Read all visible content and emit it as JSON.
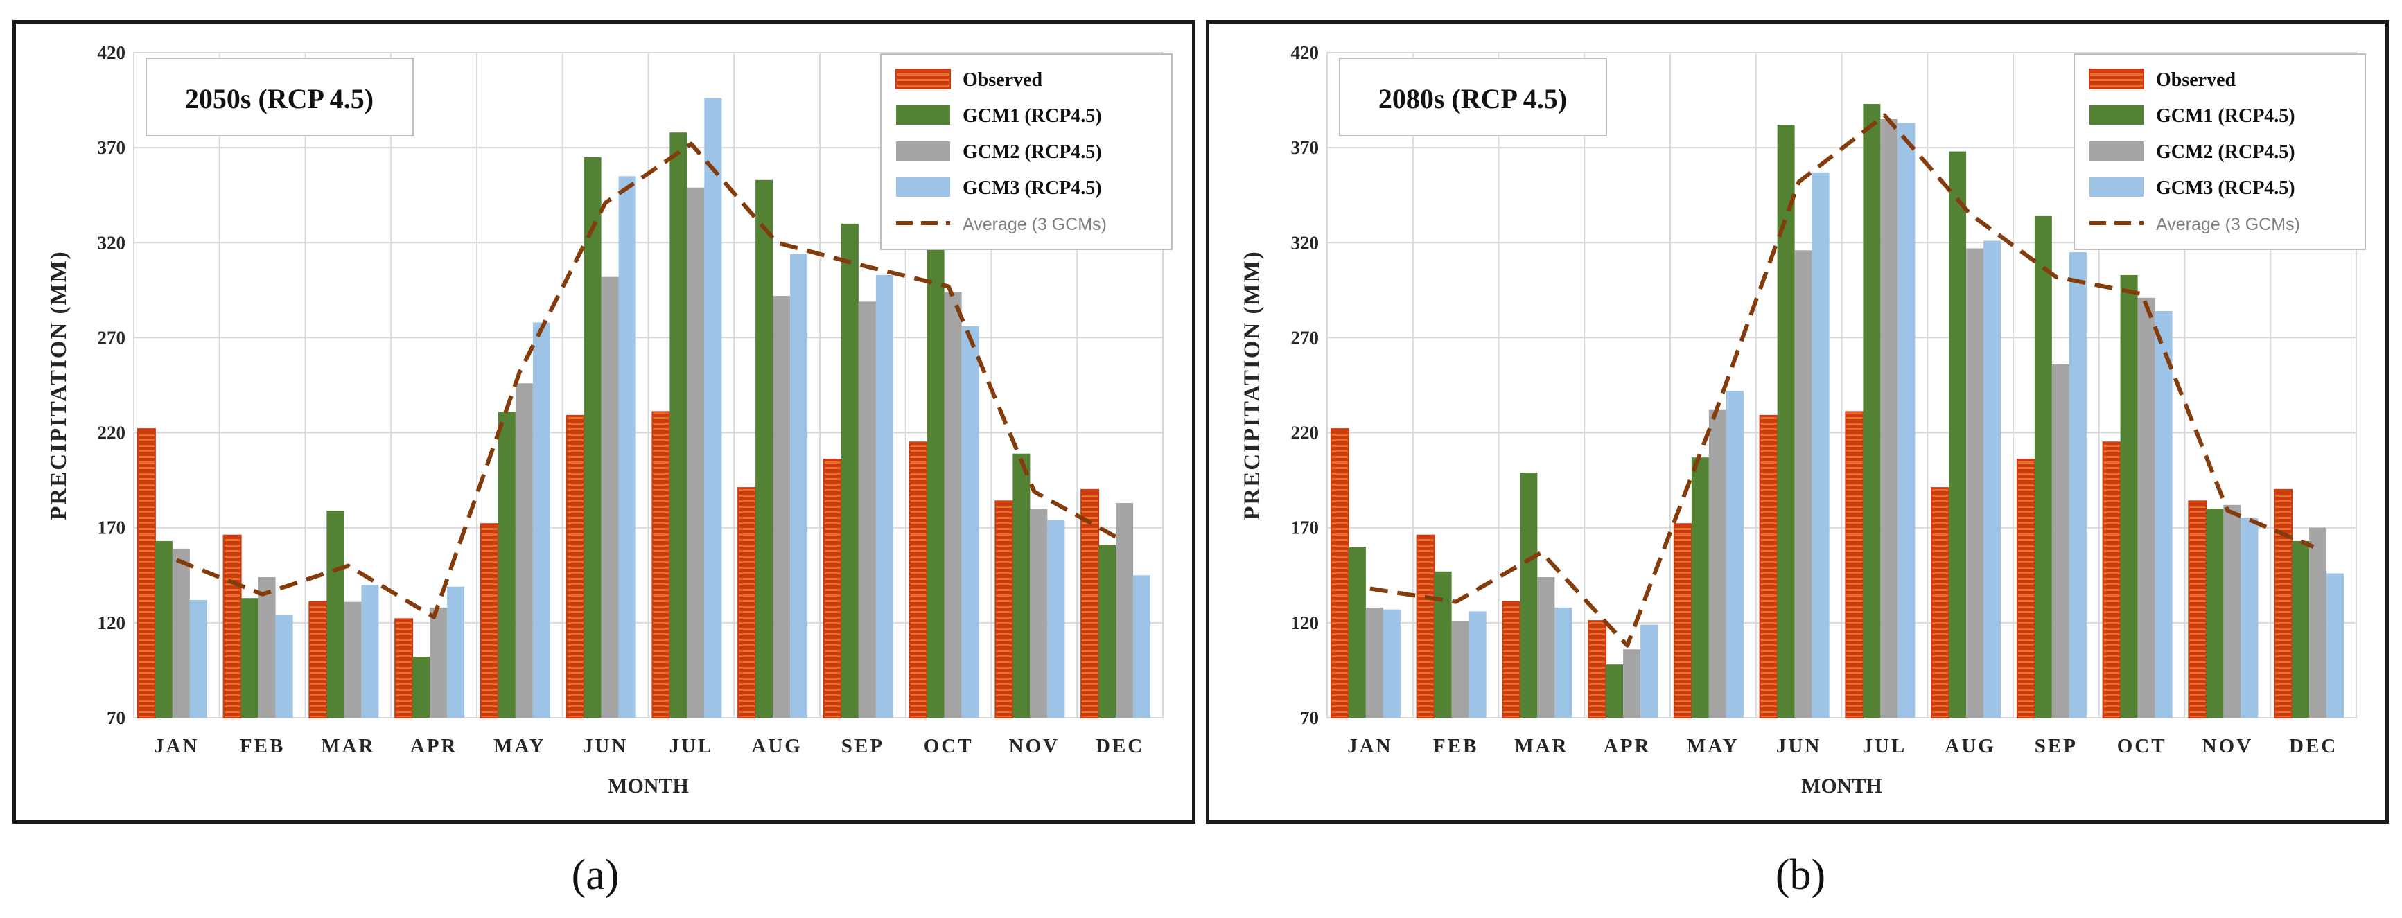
{
  "colors": {
    "observed": "#cf3a12",
    "observed_stripe": "#f0a33a",
    "gcm1": "#548235",
    "gcm2": "#a5a5a5",
    "gcm3": "#9dc3e6",
    "average": "#843c0c",
    "grid": "#d9d9d9"
  },
  "chart_data": [
    {
      "type": "bar",
      "title": "2050s (RCP 4.5)",
      "xlabel": "MONTH",
      "ylabel": "PRECIPITATION (MM)",
      "ylim": [
        70,
        420
      ],
      "yticks": [
        "70",
        "120",
        "170",
        "220",
        "270",
        "320",
        "370",
        "420"
      ],
      "categories": [
        "JAN",
        "FEB",
        "MAR",
        "APR",
        "MAY",
        "JUN",
        "JUL",
        "AUG",
        "SEP",
        "OCT",
        "NOV",
        "DEC"
      ],
      "legend_position": "top-right",
      "series": [
        {
          "name": "Observed",
          "kind": "bar",
          "values": [
            222,
            166,
            131,
            122,
            172,
            229,
            231,
            191,
            206,
            215,
            184,
            190
          ]
        },
        {
          "name": "GCM1 (RCP4.5)",
          "kind": "bar",
          "values": [
            163,
            133,
            179,
            102,
            231,
            365,
            378,
            353,
            330,
            319,
            209,
            161
          ]
        },
        {
          "name": "GCM2 (RCP4.5)",
          "kind": "bar",
          "values": [
            159,
            144,
            131,
            128,
            246,
            302,
            349,
            292,
            289,
            294,
            180,
            183
          ]
        },
        {
          "name": "GCM3 (RCP4.5)",
          "kind": "bar",
          "values": [
            132,
            124,
            140,
            139,
            278,
            355,
            396,
            314,
            303,
            276,
            174,
            145
          ]
        },
        {
          "name": "Average (3 GCMs)",
          "kind": "line",
          "values": [
            153,
            135,
            150,
            123,
            252,
            341,
            372,
            320,
            308,
            297,
            189,
            164
          ]
        }
      ]
    },
    {
      "type": "bar",
      "title": "2080s (RCP 4.5)",
      "xlabel": "MONTH",
      "ylabel": "PRECIPITATION (MM)",
      "ylim": [
        70,
        420
      ],
      "yticks": [
        "70",
        "120",
        "170",
        "220",
        "270",
        "320",
        "370",
        "420"
      ],
      "categories": [
        "JAN",
        "FEB",
        "MAR",
        "APR",
        "MAY",
        "JUN",
        "JUL",
        "AUG",
        "SEP",
        "OCT",
        "NOV",
        "DEC"
      ],
      "legend_position": "top-right",
      "series": [
        {
          "name": "Observed",
          "kind": "bar",
          "values": [
            222,
            166,
            131,
            121,
            172,
            229,
            231,
            191,
            206,
            215,
            184,
            190
          ]
        },
        {
          "name": "GCM1 (RCP4.5)",
          "kind": "bar",
          "values": [
            160,
            147,
            199,
            98,
            207,
            382,
            393,
            368,
            334,
            303,
            180,
            163
          ]
        },
        {
          "name": "GCM2 (RCP4.5)",
          "kind": "bar",
          "values": [
            128,
            121,
            144,
            106,
            232,
            316,
            385,
            317,
            256,
            291,
            182,
            170
          ]
        },
        {
          "name": "GCM3 (RCP4.5)",
          "kind": "bar",
          "values": [
            127,
            126,
            128,
            119,
            242,
            357,
            383,
            321,
            315,
            284,
            175,
            146
          ]
        },
        {
          "name": "Average (3 GCMs)",
          "kind": "line",
          "values": [
            138,
            131,
            157,
            108,
            227,
            352,
            387,
            335,
            302,
            293,
            179,
            160
          ]
        }
      ]
    }
  ],
  "captions": [
    "(a)",
    "(b)"
  ]
}
